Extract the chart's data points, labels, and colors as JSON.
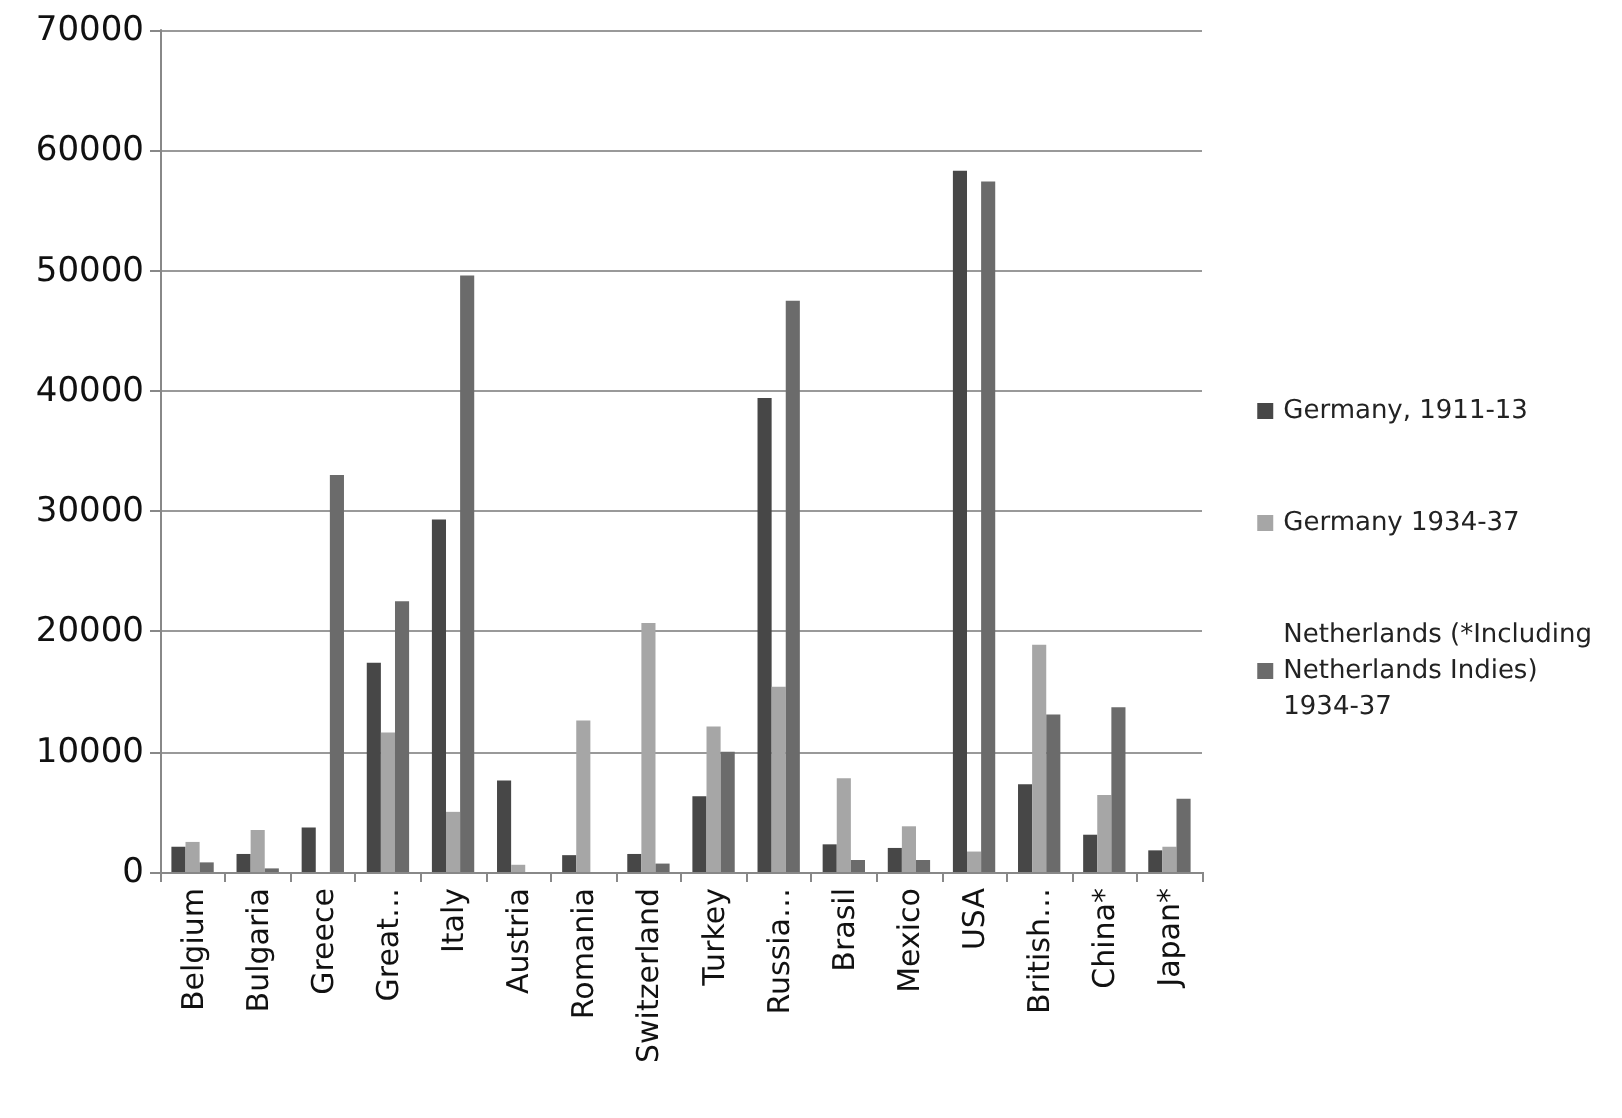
{
  "chart_data": {
    "type": "bar",
    "categories": [
      "Belgium",
      "Bulgaria",
      "Greece",
      "Great…",
      "Italy",
      "Austria",
      "Romania",
      "Switzerland",
      "Turkey",
      "Russia…",
      "Brasil",
      "Mexico",
      "USA",
      "British…",
      "China*",
      "Japan*"
    ],
    "series": [
      {
        "name": "Germany, 1911-13",
        "color": "#474747",
        "values": [
          2100,
          1500,
          3700,
          17400,
          29300,
          7600,
          1400,
          1500,
          6300,
          39400,
          2300,
          2000,
          58300,
          7300,
          3100,
          1800
        ]
      },
      {
        "name": "Germany 1934-37",
        "color": "#a6a6a6",
        "values": [
          2500,
          3500,
          0,
          11600,
          5000,
          600,
          12600,
          20700,
          12100,
          15400,
          7800,
          3800,
          1700,
          18900,
          6400,
          2100
        ]
      },
      {
        "name": "Netherlands (*Including Netherlands Indies) 1934-37",
        "color": "#6b6b6b",
        "values": [
          800,
          300,
          33000,
          22500,
          49600,
          0,
          0,
          700,
          10000,
          47500,
          1000,
          1000,
          57400,
          13100,
          13700,
          6100
        ]
      }
    ],
    "ylim": [
      0,
      70000
    ],
    "yticks": [
      0,
      10000,
      20000,
      30000,
      40000,
      50000,
      60000,
      70000
    ],
    "grid": "y",
    "legend": "right"
  }
}
